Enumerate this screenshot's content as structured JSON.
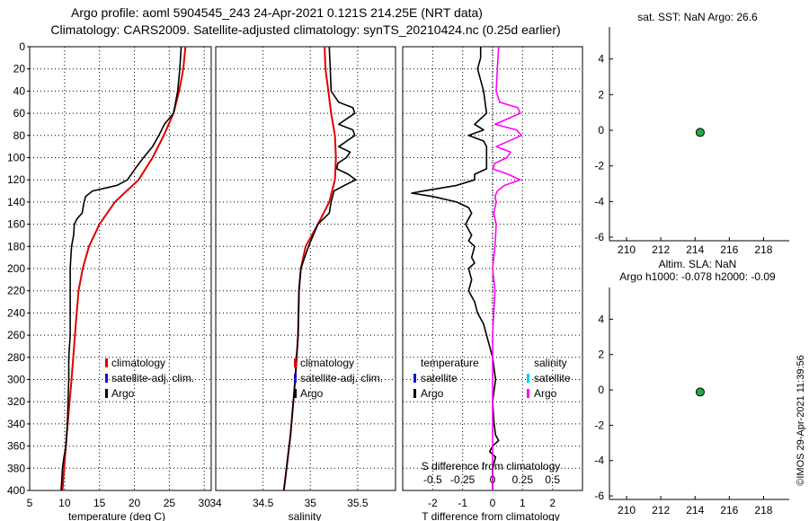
{
  "header": {
    "title_line1": "Argo profile: aoml 5904545_243 24-Apr-2021 0.121S 214.25E (NRT data)",
    "title_line2": "Climatology: CARS2009. Satellite-adjusted climatology: synTS_20210424.nc (0.25d earlier)"
  },
  "footer": {
    "credit": "©IMOS 29-Apr-2021 11:39:56"
  },
  "colors": {
    "climatology": "#e00000",
    "satellite": "#1010d0",
    "argo": "#000000",
    "salinity_diff": "#ff00ff",
    "salinity_sat": "#00d0ff",
    "marker": "#22aa44"
  },
  "chart_data": [
    {
      "id": "temperature",
      "type": "line",
      "xlabel": "temperature (deg C)",
      "ylabel": "",
      "xlim": [
        5,
        31
      ],
      "ylim": [
        400,
        0
      ],
      "xticks": [
        5,
        10,
        15,
        20,
        25,
        30
      ],
      "yticks": [
        0,
        20,
        40,
        60,
        80,
        100,
        120,
        140,
        160,
        180,
        200,
        220,
        240,
        260,
        280,
        300,
        320,
        340,
        360,
        380,
        400
      ],
      "legend": [
        "climatology",
        "satellite-adj. clim.",
        "Argo"
      ],
      "series": [
        {
          "name": "climatology",
          "color": "red",
          "depth": [
            0,
            20,
            40,
            60,
            80,
            100,
            120,
            140,
            160,
            180,
            200,
            220,
            250,
            300,
            350,
            400
          ],
          "values": [
            27.3,
            27.0,
            26.4,
            25.6,
            24.2,
            22.6,
            20.6,
            17.2,
            15.0,
            13.5,
            12.6,
            12.0,
            11.6,
            11.0,
            10.3,
            9.7
          ]
        },
        {
          "name": "Argo",
          "color": "black",
          "depth": [
            0,
            10,
            20,
            40,
            60,
            70,
            80,
            90,
            100,
            110,
            120,
            125,
            130,
            135,
            140,
            150,
            155,
            160,
            170,
            180,
            190,
            200,
            210,
            220,
            240,
            260,
            280,
            300,
            320,
            340,
            360,
            370,
            380,
            400
          ],
          "values": [
            26.7,
            26.6,
            26.5,
            26.2,
            25.6,
            24.3,
            23.5,
            22.6,
            21.3,
            20.1,
            19.0,
            17.5,
            14.0,
            13.0,
            12.8,
            12.5,
            11.8,
            11.4,
            11.3,
            11.0,
            10.9,
            10.8,
            10.8,
            10.8,
            10.8,
            10.8,
            10.6,
            10.6,
            10.5,
            10.4,
            10.2,
            9.9,
            9.7,
            9.5
          ]
        }
      ]
    },
    {
      "id": "salinity",
      "type": "line",
      "xlabel": "salinity",
      "xlim": [
        34,
        35.9
      ],
      "ylim": [
        400,
        0
      ],
      "xticks": [
        34,
        34.5,
        35,
        35.5
      ],
      "legend": [
        "climatology",
        "satellite-adj. clim.",
        "Argo"
      ],
      "series": [
        {
          "name": "climatology",
          "color": "red",
          "depth": [
            0,
            20,
            40,
            60,
            80,
            100,
            120,
            140,
            160,
            180,
            200,
            220,
            260,
            300,
            350,
            400
          ],
          "values": [
            35.15,
            35.16,
            35.19,
            35.22,
            35.26,
            35.27,
            35.26,
            35.2,
            35.08,
            34.95,
            34.9,
            34.88,
            34.87,
            34.84,
            34.79,
            34.72
          ]
        },
        {
          "name": "Argo",
          "color": "black",
          "depth": [
            0,
            20,
            40,
            50,
            55,
            60,
            70,
            75,
            80,
            90,
            95,
            100,
            105,
            110,
            115,
            120,
            125,
            130,
            140,
            150,
            160,
            180,
            200,
            220,
            260,
            300,
            350,
            400
          ],
          "values": [
            35.2,
            35.21,
            35.22,
            35.3,
            35.45,
            35.47,
            35.3,
            35.45,
            35.47,
            35.3,
            35.42,
            35.38,
            35.29,
            35.28,
            35.4,
            35.48,
            35.36,
            35.25,
            35.22,
            35.2,
            35.08,
            34.98,
            34.9,
            34.88,
            34.87,
            34.84,
            34.79,
            34.72
          ]
        }
      ]
    },
    {
      "id": "difference",
      "type": "line",
      "xlabel": "T difference from climatology",
      "top_xlabel": "S difference from climatology",
      "xlim": [
        -3,
        3
      ],
      "ylim": [
        400,
        0
      ],
      "xticks": [
        -2,
        -1,
        0,
        1,
        2
      ],
      "s_xticks": [
        "-0.5",
        "-0.25",
        "0",
        "0.25",
        "0.5"
      ],
      "legend_left_title": "temperature",
      "legend_left": [
        "satellite",
        "Argo"
      ],
      "legend_right_title": "salinity",
      "legend_right": [
        "satellite",
        "Argo"
      ],
      "series": [
        {
          "name": "T difference",
          "color": "black",
          "depth": [
            0,
            10,
            20,
            40,
            60,
            70,
            75,
            80,
            85,
            90,
            100,
            110,
            115,
            120,
            125,
            130,
            132,
            135,
            140,
            145,
            150,
            155,
            160,
            170,
            175,
            180,
            190,
            195,
            200,
            210,
            220,
            230,
            240,
            250,
            260,
            280,
            300,
            320,
            340,
            350,
            355,
            360,
            365,
            370,
            380,
            400
          ],
          "values": [
            -0.4,
            -0.4,
            -0.5,
            -0.3,
            -0.2,
            -0.6,
            -0.3,
            -0.8,
            -0.3,
            -0.2,
            -0.2,
            -0.2,
            -0.6,
            -0.6,
            -1.2,
            -2.3,
            -2.7,
            -2.0,
            -1.2,
            -0.8,
            -0.7,
            -0.8,
            -0.9,
            -0.7,
            -0.8,
            -0.6,
            -0.7,
            -0.6,
            -0.8,
            -0.7,
            -0.8,
            -0.6,
            -0.5,
            -0.3,
            -0.2,
            0.0,
            0.1,
            0.0,
            0.05,
            0.1,
            0.2,
            0.0,
            -0.1,
            0.1,
            0.0,
            0.0
          ]
        },
        {
          "name": "S difference",
          "color": "magenta",
          "depth": [
            0,
            20,
            40,
            50,
            55,
            60,
            70,
            75,
            80,
            90,
            95,
            100,
            105,
            110,
            115,
            120,
            125,
            130,
            135,
            140,
            150,
            160,
            180,
            200,
            220,
            240,
            260,
            280,
            300,
            320,
            340,
            360,
            380,
            400
          ],
          "values": [
            0.05,
            0.04,
            0.03,
            0.06,
            0.21,
            0.23,
            0.02,
            0.2,
            0.24,
            0.03,
            0.15,
            0.12,
            0.02,
            0.0,
            0.13,
            0.23,
            0.1,
            0.04,
            0.02,
            0.03,
            0.01,
            0.03,
            0.02,
            0.0,
            0.02,
            0.01,
            0.0,
            0.0,
            0.0,
            0.0,
            0.0,
            0.0,
            0.0,
            0.0
          ]
        }
      ]
    },
    {
      "id": "sst_map",
      "type": "scatter",
      "title": "sat. SST: NaN Argo: 26.6",
      "xlim": [
        209,
        219.5
      ],
      "ylim": [
        -6.2,
        5.8
      ],
      "xticks": [
        210,
        212,
        214,
        216,
        218
      ],
      "yticks": [
        -6,
        -4,
        -2,
        0,
        2,
        4
      ],
      "points": [
        {
          "x": 214.3,
          "y": -0.12
        }
      ]
    },
    {
      "id": "sla_map",
      "type": "scatter",
      "title": "Altim. SLA: NaN",
      "subtitle": "Argo h1000: -0.078 h2000: -0.09",
      "xlim": [
        209,
        219.5
      ],
      "ylim": [
        -6.2,
        5.8
      ],
      "xticks": [
        210,
        212,
        214,
        216,
        218
      ],
      "yticks": [
        -6,
        -4,
        -2,
        0,
        2,
        4
      ],
      "points": [
        {
          "x": 214.3,
          "y": -0.12
        }
      ]
    }
  ]
}
